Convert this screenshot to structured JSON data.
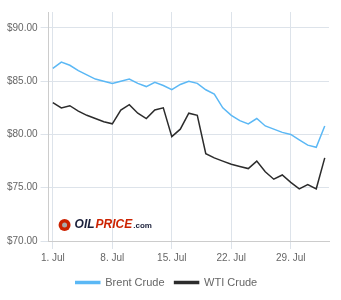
{
  "chart_data": {
    "type": "line",
    "categories": [
      "1. Jul",
      null,
      null,
      null,
      null,
      null,
      null,
      "8. Jul",
      null,
      null,
      null,
      null,
      null,
      null,
      "15. Jul",
      null,
      null,
      null,
      null,
      null,
      null,
      "22. Jul",
      null,
      null,
      null,
      null,
      null,
      null,
      "29. Jul",
      null,
      null,
      null,
      null
    ],
    "series": [
      {
        "name": "Brent Crude",
        "color": "#5bb8f5",
        "values": [
          86.2,
          86.8,
          86.5,
          86.0,
          85.6,
          85.2,
          85.0,
          84.8,
          85.0,
          85.2,
          84.8,
          84.5,
          84.9,
          84.6,
          84.2,
          84.7,
          85.0,
          84.8,
          84.2,
          83.8,
          82.5,
          81.8,
          81.3,
          81.0,
          81.5,
          80.8,
          80.5,
          80.2,
          80.0,
          79.5,
          79.0,
          78.8,
          80.8
        ]
      },
      {
        "name": "WTI Crude",
        "color": "#2c2c2c",
        "values": [
          83.0,
          82.5,
          82.7,
          82.2,
          81.8,
          81.5,
          81.2,
          81.0,
          82.3,
          82.8,
          82.0,
          81.5,
          82.3,
          82.5,
          79.8,
          80.5,
          82.0,
          81.8,
          78.2,
          77.8,
          77.5,
          77.2,
          77.0,
          76.8,
          77.5,
          76.5,
          75.8,
          76.2,
          75.5,
          74.9,
          75.3,
          74.9,
          77.8
        ]
      }
    ],
    "ylim": [
      70.0,
      91.5
    ],
    "yticks": [
      {
        "value": 70,
        "label": "$70.00"
      },
      {
        "value": 75,
        "label": "$75.00"
      },
      {
        "value": 80,
        "label": "$80.00"
      },
      {
        "value": 85,
        "label": "$85.00"
      },
      {
        "value": 90,
        "label": "$90.00"
      }
    ],
    "grid": true,
    "legend": "bottom",
    "annotations": [
      "OIL",
      "PRICE",
      ".com"
    ]
  }
}
